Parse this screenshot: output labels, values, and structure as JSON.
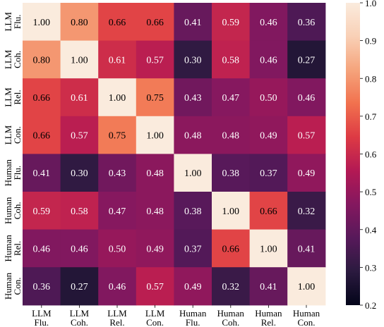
{
  "chart_data": {
    "type": "heatmap",
    "title": "",
    "rows": [
      [
        "LLM",
        "Flu."
      ],
      [
        "LLM",
        "Coh."
      ],
      [
        "LLM",
        "Rel."
      ],
      [
        "LLM",
        "Con."
      ],
      [
        "Human",
        "Flu."
      ],
      [
        "Human",
        "Coh."
      ],
      [
        "Human",
        "Rel."
      ],
      [
        "Human",
        "Con."
      ]
    ],
    "columns": [
      [
        "LLM",
        "Flu."
      ],
      [
        "LLM",
        "Coh."
      ],
      [
        "LLM",
        "Rel."
      ],
      [
        "LLM",
        "Con."
      ],
      [
        "Human",
        "Flu."
      ],
      [
        "Human",
        "Coh."
      ],
      [
        "Human",
        "Rel."
      ],
      [
        "Human",
        "Con."
      ]
    ],
    "values": [
      [
        1.0,
        0.8,
        0.66,
        0.66,
        0.41,
        0.59,
        0.46,
        0.36
      ],
      [
        0.8,
        1.0,
        0.61,
        0.57,
        0.3,
        0.58,
        0.46,
        0.27
      ],
      [
        0.66,
        0.61,
        1.0,
        0.75,
        0.43,
        0.47,
        0.5,
        0.46
      ],
      [
        0.66,
        0.57,
        0.75,
        1.0,
        0.48,
        0.48,
        0.49,
        0.57
      ],
      [
        0.41,
        0.3,
        0.43,
        0.48,
        1.0,
        0.38,
        0.37,
        0.49
      ],
      [
        0.59,
        0.58,
        0.47,
        0.48,
        0.38,
        1.0,
        0.66,
        0.32
      ],
      [
        0.46,
        0.46,
        0.5,
        0.49,
        0.37,
        0.66,
        1.0,
        0.41
      ],
      [
        0.36,
        0.27,
        0.46,
        0.57,
        0.49,
        0.32,
        0.41,
        1.0
      ]
    ],
    "value_format": "2 decimals",
    "colorbar": {
      "range": [
        0.2,
        1.0
      ],
      "ticks": [
        "0.2",
        "0.3",
        "0.4",
        "0.5",
        "0.6",
        "0.7",
        "0.8",
        "0.9",
        "1.0"
      ],
      "colormap": "rocket",
      "colormap_stops": [
        "#03051a",
        "#2b1a3f",
        "#57195a",
        "#84185f",
        "#b31954",
        "#dd3a44",
        "#f1714e",
        "#f5a47c",
        "#f9d0b6",
        "#faebdd"
      ]
    }
  }
}
